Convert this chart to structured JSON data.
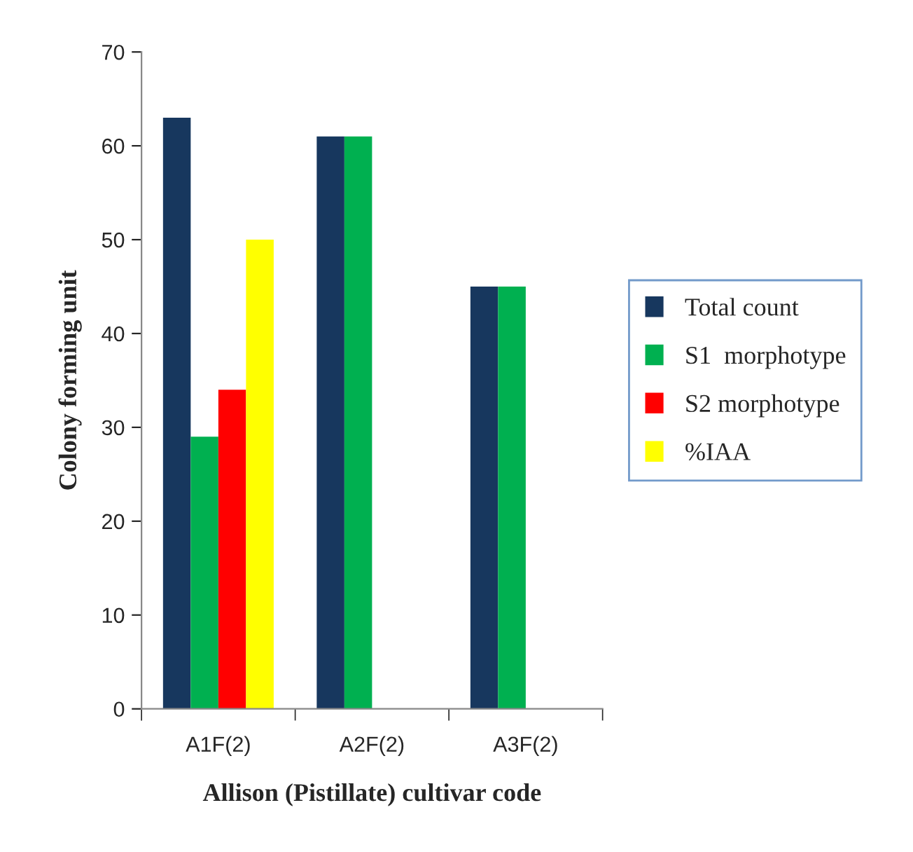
{
  "chart_data": {
    "type": "bar",
    "xlabel": "Allison (Pistillate) cultivar code",
    "ylabel": "Colony forming unit",
    "categories": [
      "A1F(2)",
      "A2F(2)",
      "A3F(2)"
    ],
    "series": [
      {
        "name": "Total count",
        "color": "#17375e",
        "values": [
          63,
          61,
          45
        ]
      },
      {
        "name": "S1  morphotype",
        "color": "#00b050",
        "values": [
          29,
          61,
          45
        ]
      },
      {
        "name": "S2 morphotype",
        "color": "#ff0000",
        "values": [
          34,
          null,
          null
        ]
      },
      {
        "name": "%IAA",
        "color": "#ffff00",
        "values": [
          50,
          null,
          null
        ]
      }
    ],
    "ylim": [
      0,
      70
    ],
    "yticks": [
      0,
      10,
      20,
      30,
      40,
      50,
      60,
      70
    ],
    "grid": false,
    "legend": "right"
  }
}
